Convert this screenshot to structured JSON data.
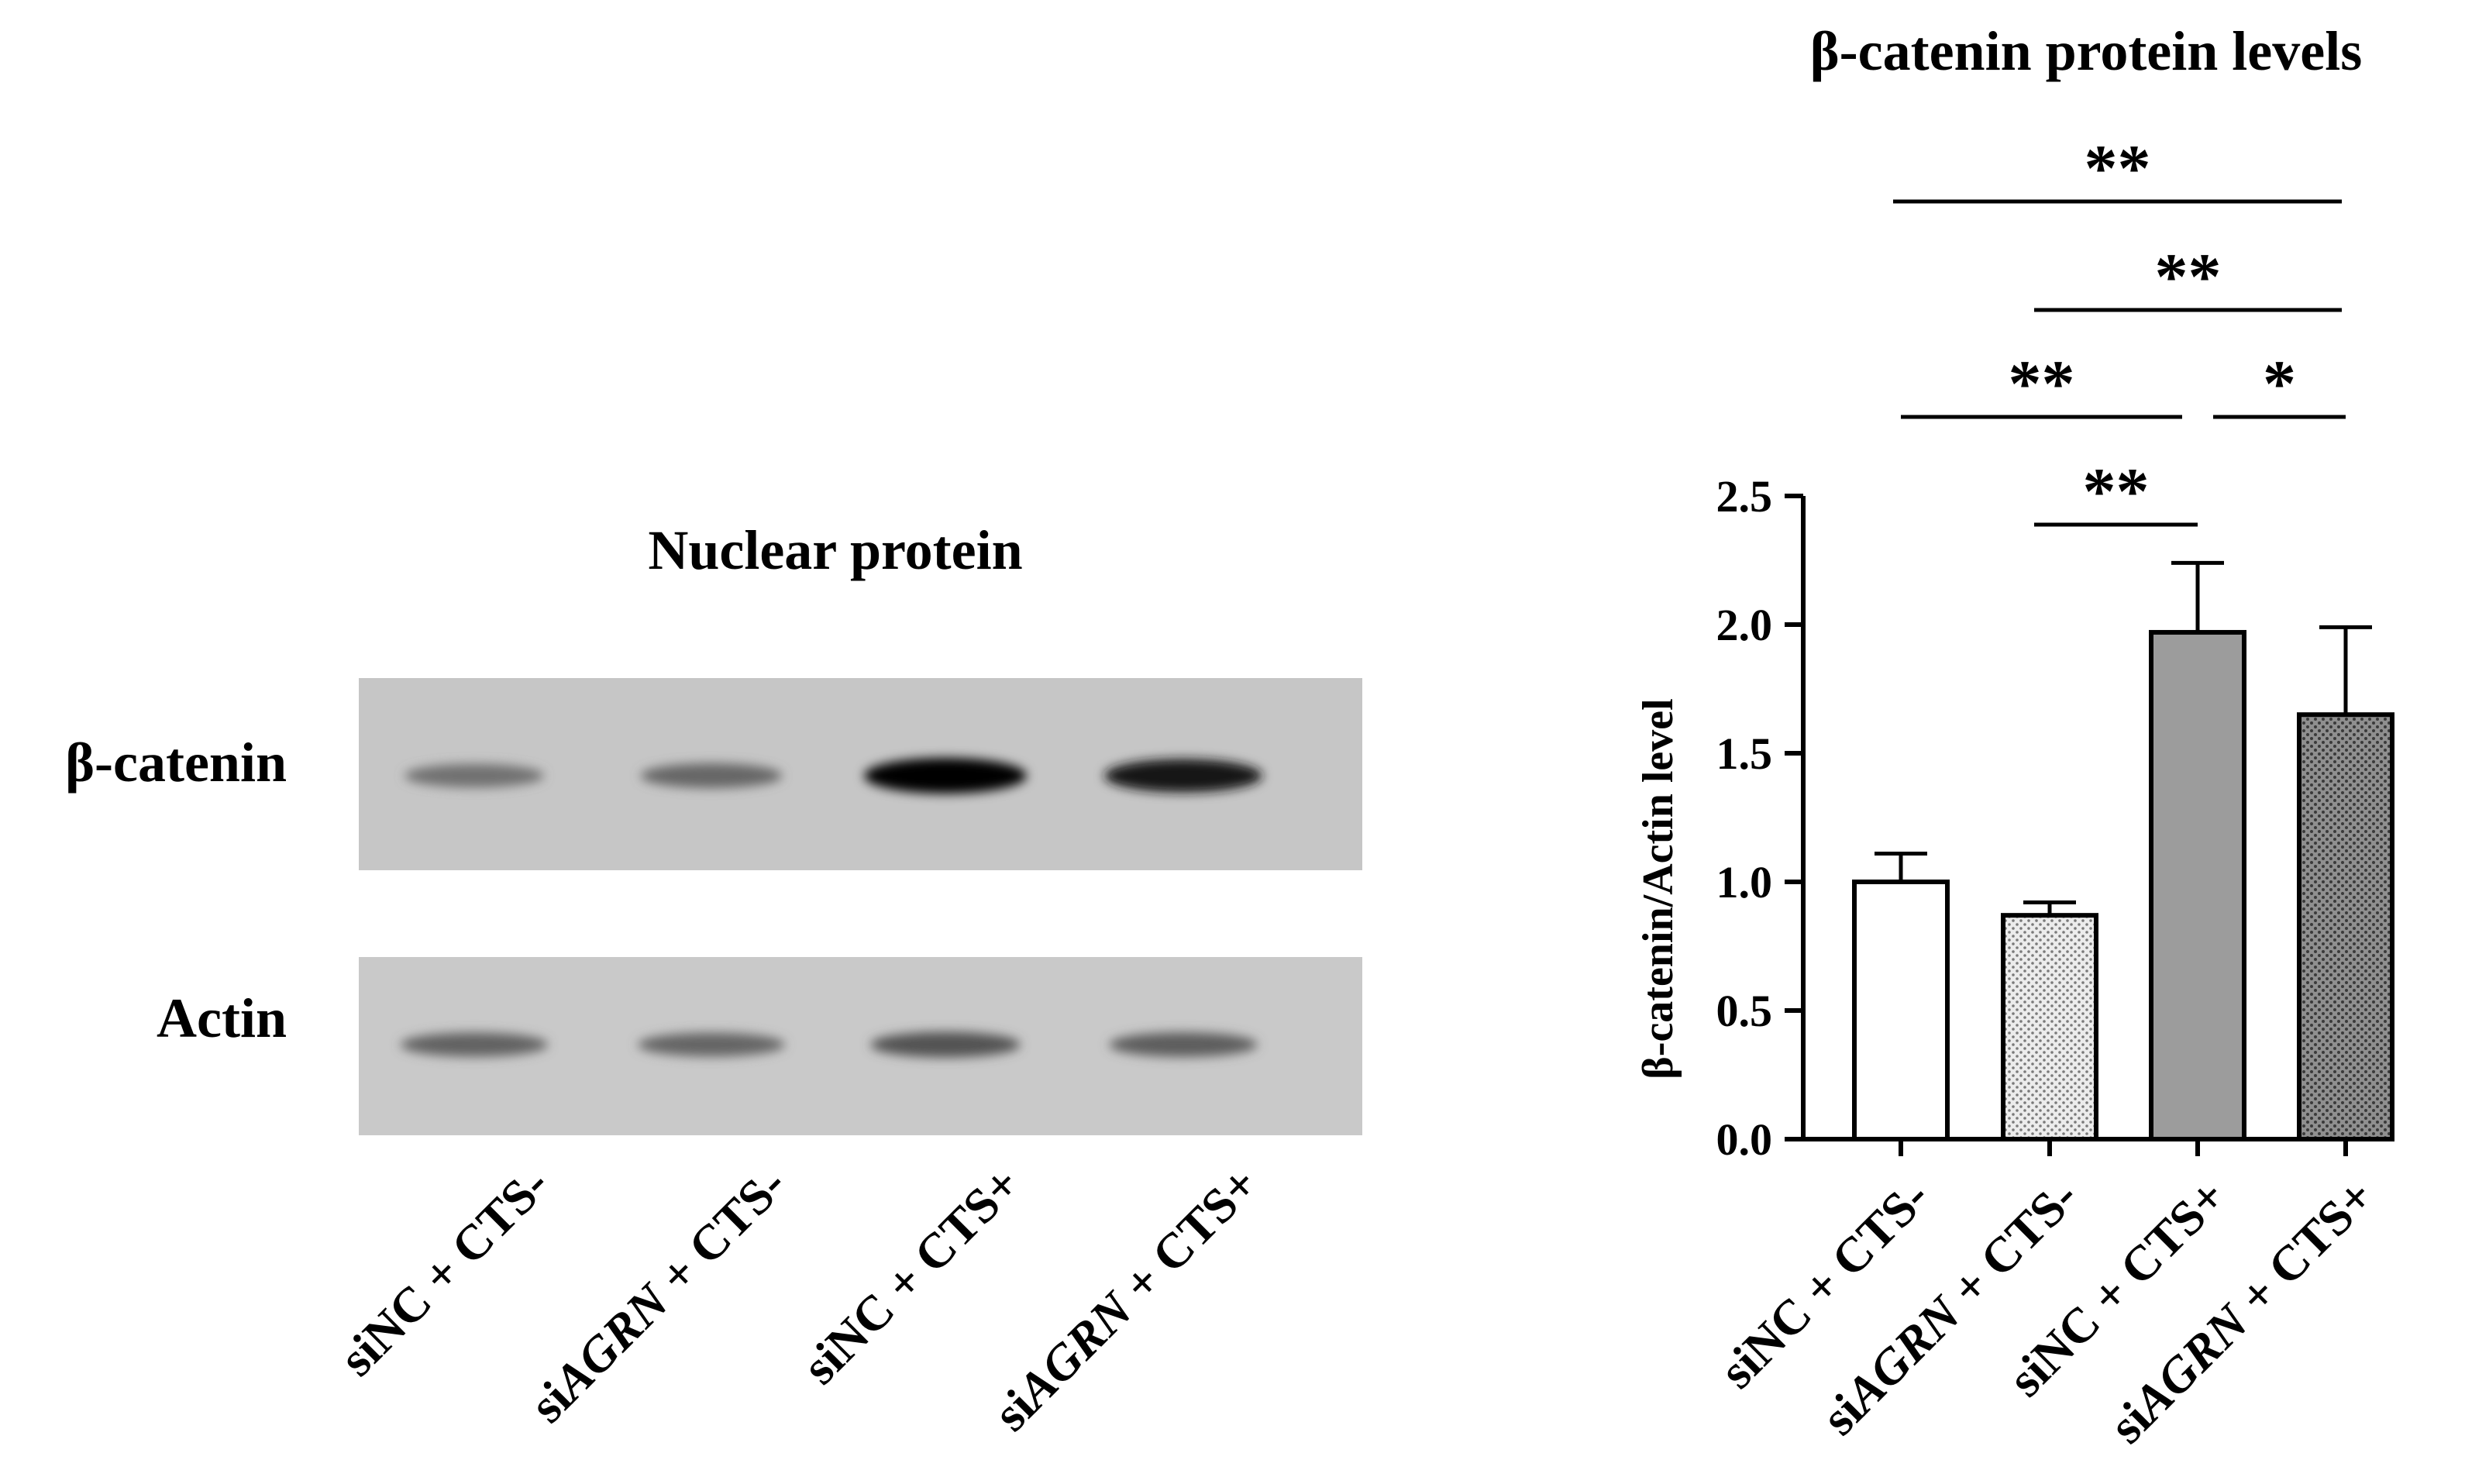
{
  "blot": {
    "title": "Nuclear protein",
    "bands": [
      {
        "label": "β-catenin",
        "intensity": [
          0.25,
          0.32,
          1.0,
          0.85
        ]
      },
      {
        "label": "Actin",
        "intensity": [
          0.35,
          0.33,
          0.45,
          0.38
        ]
      }
    ],
    "lanes": [
      {
        "pre": "siNC",
        "italic": "",
        "post": " + CTS-"
      },
      {
        "pre": "si",
        "italic": "AGRN",
        "post": " + CTS-"
      },
      {
        "pre": "siNC",
        "italic": "",
        "post": " + CTS+"
      },
      {
        "pre": "si",
        "italic": "AGRN",
        "post": " + CTS+"
      }
    ]
  },
  "chart_data": {
    "type": "bar",
    "title": "β-catenin protein levels",
    "ylabel": "β-catenin/Actin level",
    "xlabel": "",
    "ylim": [
      0,
      2.5
    ],
    "yticks": [
      "0.0",
      "0.5",
      "1.0",
      "1.5",
      "2.0",
      "2.5"
    ],
    "categories": [
      {
        "pre": "siNC",
        "italic": "",
        "post": " + CTS-"
      },
      {
        "pre": "si",
        "italic": "AGRN",
        "post": " + CTS-"
      },
      {
        "pre": "siNC",
        "italic": "",
        "post": " + CTS+"
      },
      {
        "pre": "si",
        "italic": "AGRN",
        "post": " + CTS+"
      }
    ],
    "values": [
      1.0,
      0.87,
      1.97,
      1.65
    ],
    "errors": [
      0.11,
      0.05,
      0.27,
      0.34
    ],
    "fills": [
      "white",
      "dotted-light",
      "gray",
      "dotted-dark"
    ],
    "colors": {
      "bar_gray": "#9c9c9c",
      "dot_light_bg": "#ececec",
      "dot_dark_bg": "#8f8f8f"
    },
    "significance": [
      {
        "from": 1,
        "to": 2,
        "label": "**"
      },
      {
        "from": 0,
        "to": 2,
        "label": "**"
      },
      {
        "from": 2,
        "to": 3,
        "label": "*"
      },
      {
        "from": 1,
        "to": 3,
        "label": "**"
      },
      {
        "from": 0,
        "to": 3,
        "label": "**"
      }
    ]
  }
}
